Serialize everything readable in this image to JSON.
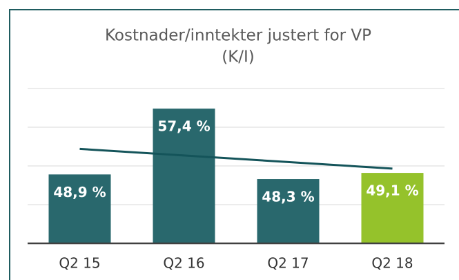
{
  "chart_data": {
    "type": "bar",
    "title": [
      "Kostnader/inntekter justert for VP",
      "(K/I)"
    ],
    "categories": [
      "Q2 15",
      "Q2 16",
      "Q2 17",
      "Q2 18"
    ],
    "values": [
      48.9,
      57.4,
      48.3,
      49.1
    ],
    "value_labels": [
      "48,9 %",
      "57,4 %",
      "48,3 %",
      "49,1 %"
    ],
    "colors": [
      "#29686d",
      "#29686d",
      "#29686d",
      "#95c22b"
    ],
    "trend": {
      "values": [
        52.2,
        51.35,
        50.5,
        49.65
      ],
      "color": "#14545a"
    },
    "ylim": [
      40,
      60
    ],
    "yticks": [
      40,
      45,
      50,
      55,
      60
    ],
    "grid": true
  }
}
